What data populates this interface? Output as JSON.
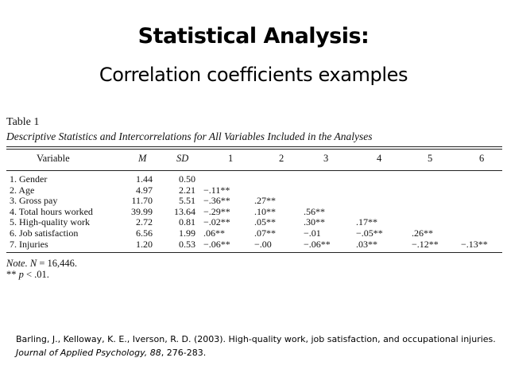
{
  "slide": {
    "title": "Statistical Analysis:",
    "subtitle": "Correlation coefficients examples"
  },
  "table": {
    "label": "Table 1",
    "caption": "Descriptive Statistics and Intercorrelations for All Variables Included in the Analyses",
    "headers": {
      "variable": "Variable",
      "m": "M",
      "sd": "SD",
      "c1": "1",
      "c2": "2",
      "c3": "3",
      "c4": "4",
      "c5": "5",
      "c6": "6"
    },
    "rows": [
      {
        "variable": "1. Gender",
        "m": "1.44",
        "sd": "0.50",
        "c1": "",
        "c2": "",
        "c3": "",
        "c4": "",
        "c5": "",
        "c6": ""
      },
      {
        "variable": "2. Age",
        "m": "4.97",
        "sd": "2.21",
        "c1": "−.11**",
        "c2": "",
        "c3": "",
        "c4": "",
        "c5": "",
        "c6": ""
      },
      {
        "variable": "3. Gross pay",
        "m": "11.70",
        "sd": "5.51",
        "c1": "−.36**",
        "c2": ".27**",
        "c3": "",
        "c4": "",
        "c5": "",
        "c6": ""
      },
      {
        "variable": "4. Total hours worked",
        "m": "39.99",
        "sd": "13.64",
        "c1": "−.29**",
        "c2": ".10**",
        "c3": ".56**",
        "c4": "",
        "c5": "",
        "c6": ""
      },
      {
        "variable": "5. High-quality work",
        "m": "2.72",
        "sd": "0.81",
        "c1": "−.02**",
        "c2": ".05**",
        "c3": ".30**",
        "c4": ".17**",
        "c5": "",
        "c6": ""
      },
      {
        "variable": "6. Job satisfaction",
        "m": "6.56",
        "sd": "1.99",
        "c1": ".06**",
        "c2": ".07**",
        "c3": "−.01",
        "c4": "−.05**",
        "c5": ".26**",
        "c6": ""
      },
      {
        "variable": "7. Injuries",
        "m": "1.20",
        "sd": "0.53",
        "c1": "−.06**",
        "c2": "−.00",
        "c3": "−.06**",
        "c4": ".03**",
        "c5": "−.12**",
        "c6": "−.13**"
      }
    ],
    "note_label": "Note.",
    "note_n": "N",
    "note_text": " = 16,446.",
    "note_p_prefix": "** ",
    "note_p": "p",
    "note_p_text": " < .01."
  },
  "citation": {
    "authors": "Barling, J., Kelloway, K. E., Iverson, R. D. (2003).  High-quality work, job satisfaction, and occupational injuries.  ",
    "journal": "Journal of Applied Psychology, 88",
    "pages": ", 276-283."
  }
}
